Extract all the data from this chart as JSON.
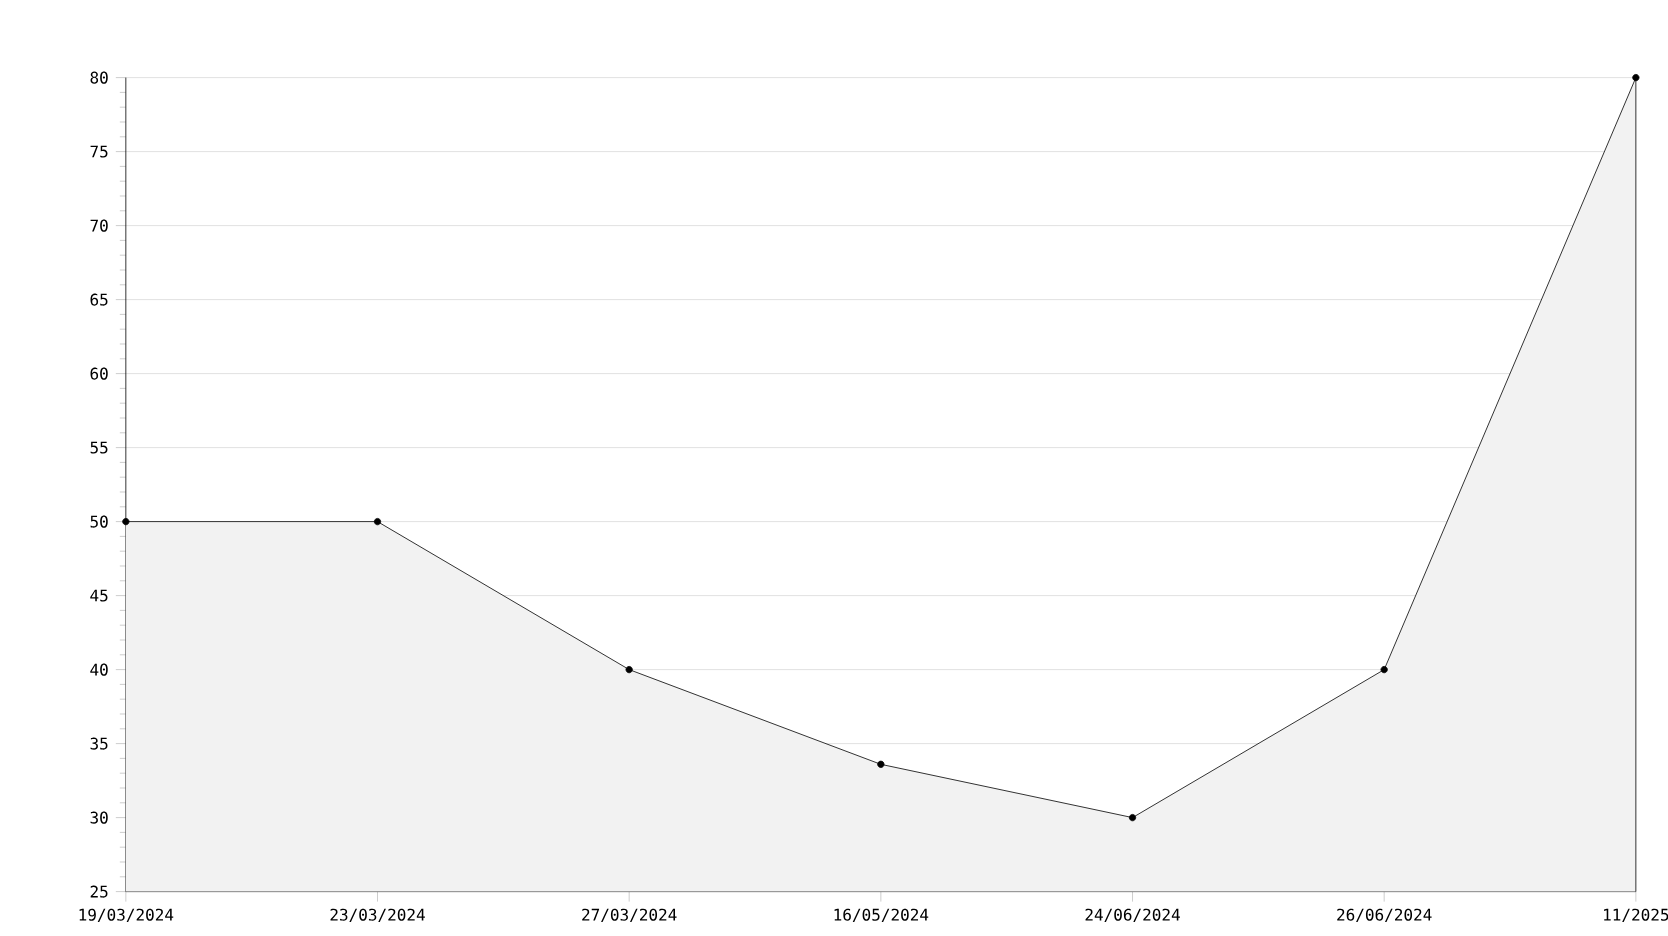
{
  "chart_data": {
    "type": "area",
    "categories": [
      "19/03/2024",
      "23/03/2024",
      "27/03/2024",
      "16/05/2024",
      "24/06/2024",
      "26/06/2024",
      "11/2025"
    ],
    "series": [
      {
        "color": "#f2f2f2",
        "values": [
          50,
          50,
          40,
          33.6,
          30,
          40,
          80
        ]
      }
    ],
    "ylim": [
      25,
      80
    ],
    "yticks": [
      25,
      30,
      35,
      40,
      45,
      50,
      55,
      60,
      65,
      70,
      75,
      80
    ],
    "grid": "y",
    "marker": "circle",
    "line_style": "solid"
  }
}
